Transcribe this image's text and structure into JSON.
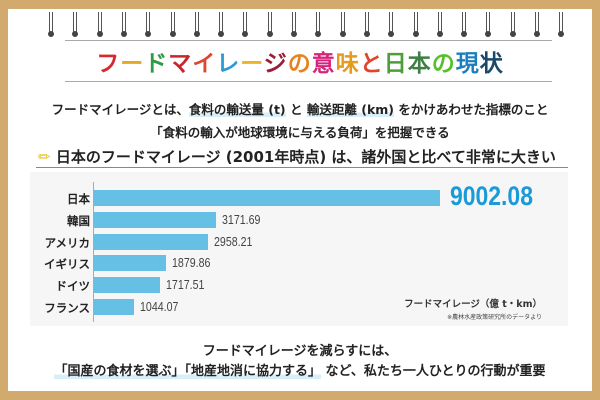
{
  "title": [
    {
      "t": "フ",
      "c": "#d7282f"
    },
    {
      "t": "ー",
      "c": "#e5a823"
    },
    {
      "t": "ド",
      "c": "#2e9b46"
    },
    {
      "t": "マ",
      "c": "#c9252c"
    },
    {
      "t": "イ",
      "c": "#e0452b"
    },
    {
      "t": "レ",
      "c": "#2a9bd6"
    },
    {
      "t": "ー",
      "c": "#f0b323"
    },
    {
      "t": "ジ",
      "c": "#9b1d38"
    },
    {
      "t": "の",
      "c": "#e8821e"
    },
    {
      "t": "意",
      "c": "#d6247b"
    },
    {
      "t": "味",
      "c": "#e49c1f"
    },
    {
      "t": "と",
      "c": "#e0452b"
    },
    {
      "t": "日",
      "c": "#4c9f38"
    },
    {
      "t": "本",
      "c": "#3f7e44"
    },
    {
      "t": "の",
      "c": "#56c02b"
    },
    {
      "t": "現",
      "c": "#1b7fbf"
    },
    {
      "t": "状",
      "c": "#19486a"
    }
  ],
  "lead": {
    "p1": "フードマイレージとは、",
    "h1": "食料の輸送量 (t)",
    "p2": " と ",
    "h2": "輸送距離 (km)",
    "p3": " をかけあわせた指標のこと",
    "line2": "「食料の輸入が地球環境に与える負荷」を把握できる"
  },
  "subtitle": {
    "icon": "pencil-icon",
    "text": "日本のフードマイレージ (2001年時点) は、諸外国と比べて非常に大きい"
  },
  "chart_data": {
    "type": "bar",
    "orientation": "horizontal",
    "categories": [
      "日本",
      "韓国",
      "アメリカ",
      "イギリス",
      "ドイツ",
      "フランス"
    ],
    "values": [
      9002.08,
      3171.69,
      2958.21,
      1879.86,
      1717.51,
      1044.07
    ],
    "value_labels": [
      "9002.08",
      "3171.69",
      "2958.21",
      "1879.86",
      "1717.51",
      "1044.07"
    ],
    "unit_label": "フードマイレージ（億 t・km）",
    "source": "※農林水産政策研究所のデータより",
    "bar_color": "#66bfe4",
    "highlight_color": "#1a9ad8",
    "xlim": [
      0,
      9002.08
    ]
  },
  "footer": {
    "line1": "フードマイレージを減らすには、",
    "h1": "「国産の食材を選ぶ」",
    "h2": "「地産地消に協力する」",
    "rest": " など、私たち一人ひとりの行動が重要"
  }
}
